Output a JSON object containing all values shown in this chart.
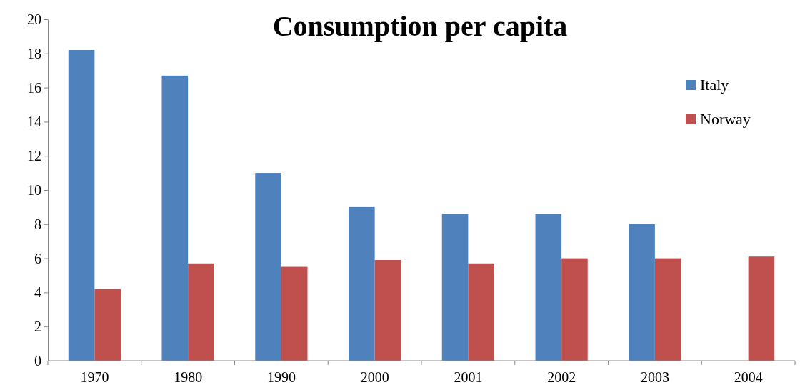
{
  "chart_data": {
    "type": "bar",
    "title": "Consumption per capita",
    "categories": [
      "1970",
      "1980",
      "1990",
      "2000",
      "2001",
      "2002",
      "2003",
      "2004"
    ],
    "series": [
      {
        "name": "Italy",
        "color": "#4f81bd",
        "values": [
          18.2,
          16.7,
          11.0,
          9.0,
          8.6,
          8.6,
          8.0,
          null
        ]
      },
      {
        "name": "Norway",
        "color": "#c0504d",
        "values": [
          4.2,
          5.7,
          5.5,
          5.9,
          5.7,
          6.0,
          6.0,
          6.1
        ]
      }
    ],
    "ylim": [
      0,
      20
    ],
    "yticks": [
      0,
      2,
      4,
      6,
      8,
      10,
      12,
      14,
      16,
      18,
      20
    ],
    "grid": false,
    "legend": "top right"
  }
}
